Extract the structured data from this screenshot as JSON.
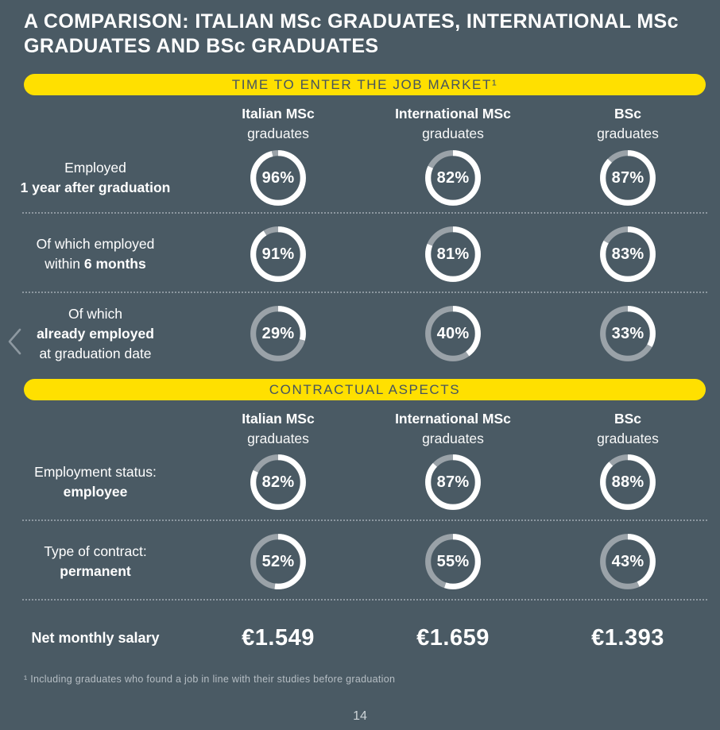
{
  "theme": {
    "background": "#4a5a64",
    "accent_yellow": "#ffe000",
    "banner_text": "#45545f",
    "ring_fill": "#ffffff",
    "ring_remainder": "#9aa2a8",
    "footnote_color": "#b6bec4"
  },
  "title": "A COMPARISON: ITALIAN MSc GRADUATES, INTERNATIONAL MSc GRADUATES AND BSc GRADUATES",
  "nav": {
    "prev_icon": "chevron-left"
  },
  "columns": [
    {
      "bold": "Italian MSc",
      "light": "graduates"
    },
    {
      "bold": "International MSc",
      "light": "graduates"
    },
    {
      "bold": "BSc",
      "light": "graduates"
    }
  ],
  "sections": [
    {
      "banner": "TIME TO ENTER THE JOB MARKET¹",
      "rows": [
        {
          "label_lines": [
            {
              "pre": "Employed"
            },
            {
              "bold": "1 year after graduation"
            }
          ],
          "values": [
            "96%",
            "82%",
            "87%"
          ]
        },
        {
          "label_lines": [
            {
              "pre": "Of which employed"
            },
            {
              "pre": "within ",
              "bold": "6 months"
            }
          ],
          "values": [
            "91%",
            "81%",
            "83%"
          ]
        },
        {
          "label_lines": [
            {
              "pre": "Of which"
            },
            {
              "bold": "already employed"
            },
            {
              "pre": "at graduation date"
            }
          ],
          "values": [
            "29%",
            "40%",
            "33%"
          ]
        }
      ]
    },
    {
      "banner": "CONTRACTUAL ASPECTS",
      "rows": [
        {
          "label_lines": [
            {
              "pre": "Employment status:"
            },
            {
              "bold": "employee"
            }
          ],
          "values": [
            "82%",
            "87%",
            "88%"
          ]
        },
        {
          "label_lines": [
            {
              "pre": "Type of contract:"
            },
            {
              "bold": "permanent"
            }
          ],
          "values": [
            "52%",
            "55%",
            "43%"
          ]
        }
      ]
    }
  ],
  "salary": {
    "label": "Net monthly salary",
    "values": [
      "€1.549",
      "€1.659",
      "€1.393"
    ]
  },
  "footnote": "¹ Including graduates who found a job in line with their studies before graduation",
  "page_number": "14",
  "chart_data": {
    "type": "table",
    "title": "A COMPARISON: ITALIAN MSc GRADUATES, INTERNATIONAL MSc GRADUATES AND BSc GRADUATES",
    "columns": [
      "Italian MSc graduates",
      "International MSc graduates",
      "BSc graduates"
    ],
    "sections": [
      {
        "title": "TIME TO ENTER THE JOB MARKET¹",
        "rows": [
          {
            "label": "Employed 1 year after graduation",
            "unit": "%",
            "values": [
              96,
              82,
              87
            ]
          },
          {
            "label": "Of which employed within 6 months",
            "unit": "%",
            "values": [
              91,
              81,
              83
            ]
          },
          {
            "label": "Of which already employed at graduation date",
            "unit": "%",
            "values": [
              29,
              40,
              33
            ]
          }
        ]
      },
      {
        "title": "CONTRACTUAL ASPECTS",
        "rows": [
          {
            "label": "Employment status: employee",
            "unit": "%",
            "values": [
              82,
              87,
              88
            ]
          },
          {
            "label": "Type of contract: permanent",
            "unit": "%",
            "values": [
              52,
              55,
              43
            ]
          },
          {
            "label": "Net monthly salary",
            "unit": "EUR/month",
            "values": [
              1549,
              1659,
              1393
            ]
          }
        ]
      }
    ],
    "notes": "Donut charts: white arc = percentage, starts at 12 o'clock clockwise; remainder grey",
    "footnote": "¹ Including graduates who found a job in line with their studies before graduation"
  }
}
